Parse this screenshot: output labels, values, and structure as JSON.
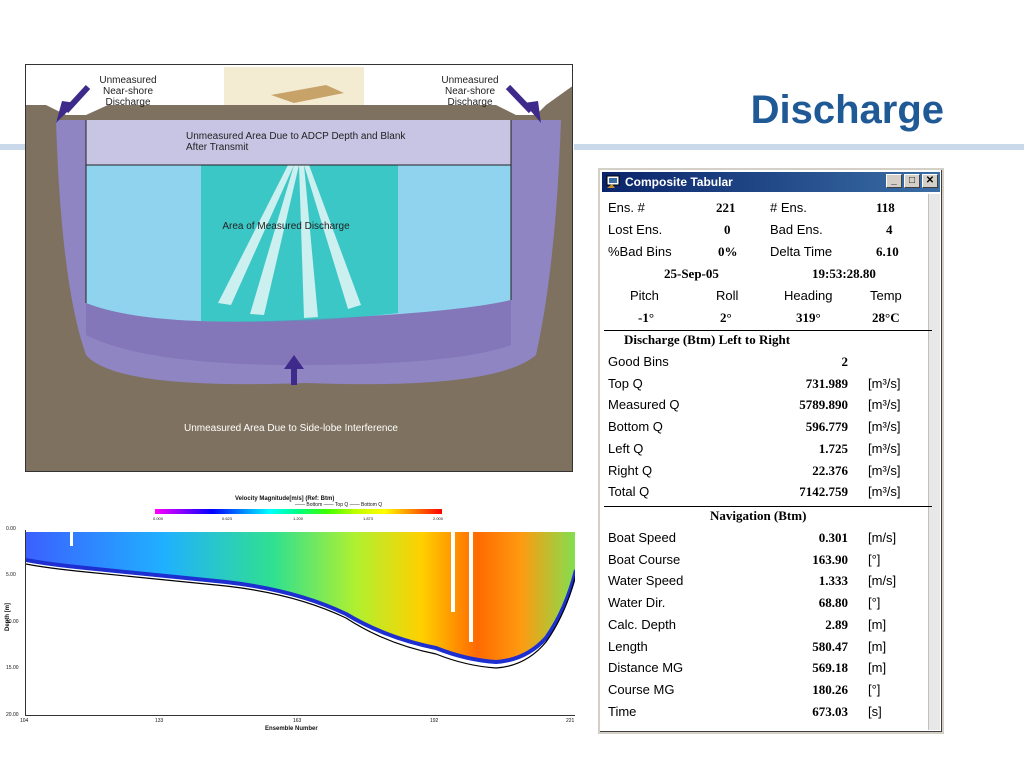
{
  "slide": {
    "title": "Discharge"
  },
  "diagram": {
    "label_left": "Unmeasured Near-shore Discharge",
    "label_right": "Unmeasured Near-shore Discharge",
    "label_top": "Unmeasured Area Due to ADCP Depth and Blank After Transmit",
    "label_mid": "Area of Measured Discharge",
    "label_bottom": "Unmeasured Area Due to Side-lobe Interference"
  },
  "profile": {
    "title": "Velocity Magnitude[m/s] (Ref: Btm)",
    "legend": "—— Bottom   —— Top Q   —— Bottom Q",
    "colorbar_ticks": [
      "0.000",
      "0.623",
      "1.200",
      "1.873",
      "2.000"
    ],
    "y_ticks": [
      "0.00",
      "5.00",
      "10.00",
      "15.00",
      "20.00"
    ],
    "x_ticks": [
      "104",
      "133",
      "163",
      "192",
      "221"
    ],
    "x_label": "Ensemble Number",
    "y_label": "Depth [m]"
  },
  "window": {
    "title": "Composite Tabular",
    "buttons": {
      "minimize": "_",
      "maximize": "□",
      "close": "✕"
    },
    "header": {
      "ens_label": "Ens. #",
      "ens_value": "221",
      "nens_label": "# Ens.",
      "nens_value": "118",
      "lost_label": "Lost Ens.",
      "lost_value": "0",
      "bad_label": "Bad Ens.",
      "bad_value": "4",
      "badbins_label": "%Bad Bins",
      "badbins_value": "0%",
      "delta_label": "Delta Time",
      "delta_value": "6.10",
      "date": "25-Sep-05",
      "time": "19:53:28.80",
      "pitch_label": "Pitch",
      "roll_label": "Roll",
      "heading_label": "Heading",
      "temp_label": "Temp",
      "pitch": "-1°",
      "roll": "2°",
      "heading": "319°",
      "temp": "28°C"
    },
    "discharge": {
      "title": "Discharge (Btm) Left to Right",
      "rows": [
        {
          "label": "Good Bins",
          "value": "2",
          "unit": ""
        },
        {
          "label": "Top Q",
          "value": "731.989",
          "unit": "[m³/s]"
        },
        {
          "label": "Measured Q",
          "value": "5789.890",
          "unit": "[m³/s]"
        },
        {
          "label": "Bottom Q",
          "value": "596.779",
          "unit": "[m³/s]"
        },
        {
          "label": "Left Q",
          "value": "1.725",
          "unit": "[m³/s]"
        },
        {
          "label": "Right Q",
          "value": "22.376",
          "unit": "[m³/s]"
        },
        {
          "label": "Total Q",
          "value": "7142.759",
          "unit": "[m³/s]"
        }
      ]
    },
    "navigation": {
      "title": "Navigation (Btm)",
      "rows": [
        {
          "label": "Boat Speed",
          "value": "0.301",
          "unit": "[m/s]"
        },
        {
          "label": "Boat Course",
          "value": "163.90",
          "unit": "[°]"
        },
        {
          "label": "Water Speed",
          "value": "1.333",
          "unit": "[m/s]"
        },
        {
          "label": "Water Dir.",
          "value": "68.80",
          "unit": "[°]"
        },
        {
          "label": "Calc. Depth",
          "value": "2.89",
          "unit": "[m]"
        },
        {
          "label": "Length",
          "value": "580.47",
          "unit": "[m]"
        },
        {
          "label": "Distance MG",
          "value": "569.18",
          "unit": "[m]"
        },
        {
          "label": "Course MG",
          "value": "180.26",
          "unit": "[°]"
        },
        {
          "label": "Time",
          "value": "673.03",
          "unit": "[s]"
        }
      ]
    }
  }
}
